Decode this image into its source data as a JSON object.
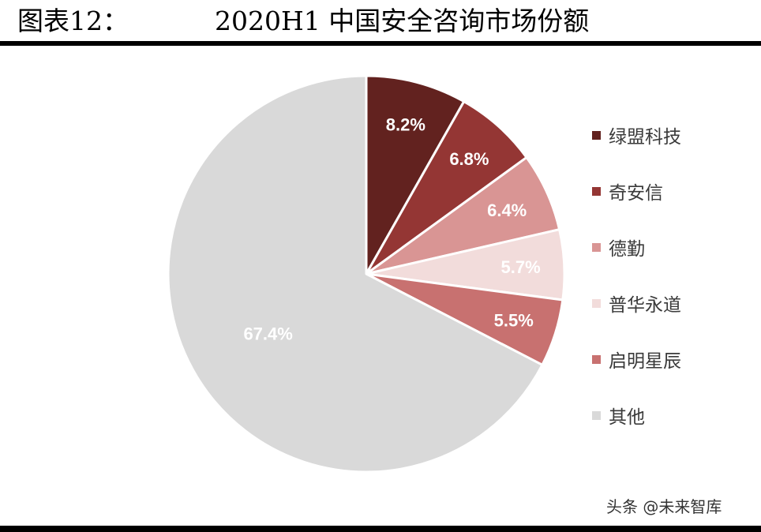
{
  "header": {
    "figure_label": "图表12：",
    "title": "2020H1 中国安全咨询市场份额"
  },
  "source": "头条 @未来智库",
  "chart_data": {
    "type": "pie",
    "title": "2020H1 中国安全咨询市场份额",
    "categories": [
      "绿盟科技",
      "奇安信",
      "德勤",
      "普华永道",
      "启明星辰",
      "其他"
    ],
    "values": [
      8.2,
      6.8,
      6.4,
      5.7,
      5.5,
      67.4
    ],
    "labels": [
      "8.2%",
      "6.8%",
      "6.4%",
      "5.7%",
      "5.5%",
      "67.4%"
    ],
    "colors": [
      "#62221f",
      "#943634",
      "#d99594",
      "#f2dcdb",
      "#c87170",
      "#d9d9d9"
    ],
    "label_color": "#ffffff",
    "start_angle_deg": 0,
    "direction": "clockwise",
    "unit": "%",
    "legend_position": "right"
  },
  "legend": {
    "items": [
      {
        "label": "绿盟科技",
        "color": "#62221f"
      },
      {
        "label": "奇安信",
        "color": "#943634"
      },
      {
        "label": "德勤",
        "color": "#d99594"
      },
      {
        "label": "普华永道",
        "color": "#f2dcdb"
      },
      {
        "label": "启明星辰",
        "color": "#c87170"
      },
      {
        "label": "其他",
        "color": "#d9d9d9"
      }
    ]
  }
}
